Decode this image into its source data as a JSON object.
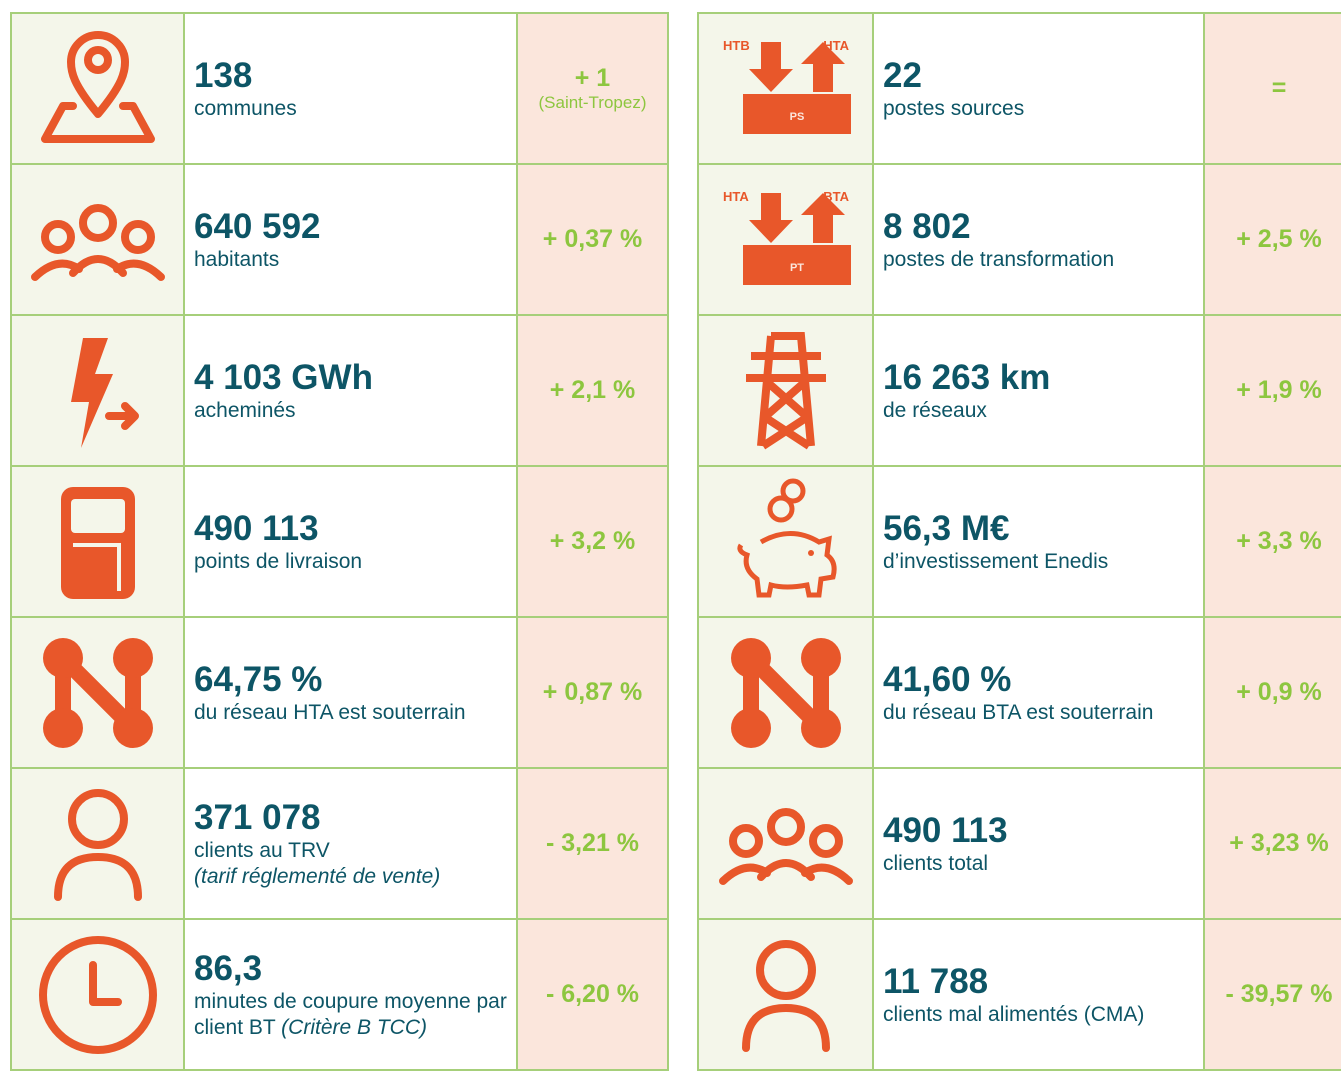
{
  "left": {
    "rows": [
      {
        "value": "138",
        "label": "communes",
        "change": "+ 1",
        "change_note": "(Saint-Tropez)"
      },
      {
        "value": "640 592",
        "label": "habitants",
        "change": "+ 0,37 %"
      },
      {
        "value": "4 103 GWh",
        "label": "acheminés",
        "change": "+ 2,1 %"
      },
      {
        "value": "490 113",
        "label": "points de livraison",
        "change": "+ 3,2 %"
      },
      {
        "value": "64,75 %",
        "label": "du réseau HTA est souterrain",
        "change": "+ 0,87 %"
      },
      {
        "value": "371 078",
        "label": "clients au TRV",
        "note": "(tarif réglementé de vente)",
        "change": "- 3,21 %"
      },
      {
        "value": "86,3",
        "label": "minutes de coupure moyenne par client BT",
        "note": "(Critère B TCC)",
        "change": "- 6,20 %"
      }
    ]
  },
  "right": {
    "rows": [
      {
        "value": "22",
        "label": "postes sources",
        "change": "=",
        "icon_labels": [
          "HTB",
          "HTA",
          "PS"
        ]
      },
      {
        "value": "8 802",
        "label": "postes de transformation",
        "change": "+ 2,5 %",
        "icon_labels": [
          "HTA",
          "BTA",
          "PT"
        ]
      },
      {
        "value": "16 263 km",
        "label": "de réseaux",
        "change": "+ 1,9 %"
      },
      {
        "value": "56,3 M€",
        "label": "d’investissement Enedis",
        "change": "+ 3,3 %"
      },
      {
        "value": "41,60 %",
        "label": "du réseau BTA est souterrain",
        "change": "+ 0,9 %"
      },
      {
        "value": "490 113",
        "label": "clients total",
        "change": "+ 3,23 %"
      },
      {
        "value": "11 788",
        "label": "clients mal alimentés (CMA)",
        "change": "- 39,57 %"
      }
    ]
  }
}
